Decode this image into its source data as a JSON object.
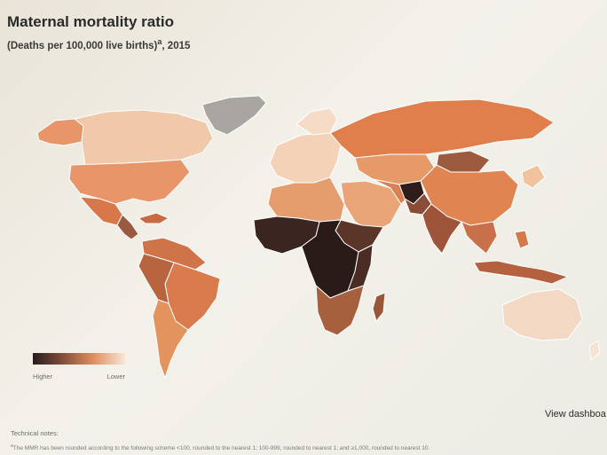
{
  "header": {
    "title": "Maternal mortality ratio",
    "subtitle": "(Deaths per 100,000 live births)",
    "subtitle_superscript": "a",
    "year": ", 2015"
  },
  "legend": {
    "label_high": "Higher",
    "label_low": "Lower",
    "colors": [
      "#2a1c1c",
      "#7a4a3a",
      "#e08d5e",
      "#f7e7d8"
    ]
  },
  "map": {
    "no_data_color": "#a9a6a2",
    "border_color": "#ffffff",
    "regions": [
      {
        "name": "greenland",
        "level": "no-data"
      },
      {
        "name": "canada",
        "level": "lowest"
      },
      {
        "name": "usa",
        "level": "low"
      },
      {
        "name": "mexico-central-america",
        "level": "medium"
      },
      {
        "name": "south-america",
        "level": "medium"
      },
      {
        "name": "europe",
        "level": "lowest"
      },
      {
        "name": "russia",
        "level": "low"
      },
      {
        "name": "central-asia",
        "level": "low"
      },
      {
        "name": "china",
        "level": "low"
      },
      {
        "name": "middle-east",
        "level": "low"
      },
      {
        "name": "afghanistan",
        "level": "highest"
      },
      {
        "name": "south-asia",
        "level": "high"
      },
      {
        "name": "southeast-asia",
        "level": "medium"
      },
      {
        "name": "north-africa",
        "level": "medium"
      },
      {
        "name": "sub-saharan-africa",
        "level": "highest"
      },
      {
        "name": "southern-africa",
        "level": "high"
      },
      {
        "name": "australia",
        "level": "lowest"
      }
    ]
  },
  "footer": {
    "view_dashboard": "View dashboa",
    "technical_notes": "Technical notes:",
    "footnote_marker": "a",
    "footnote": "The MMR has been rounded according to the following scheme <100, rounded to the nearest 1; 100-999, rounded to nearest 1; and ≥1,000, rounded to nearest 10."
  }
}
